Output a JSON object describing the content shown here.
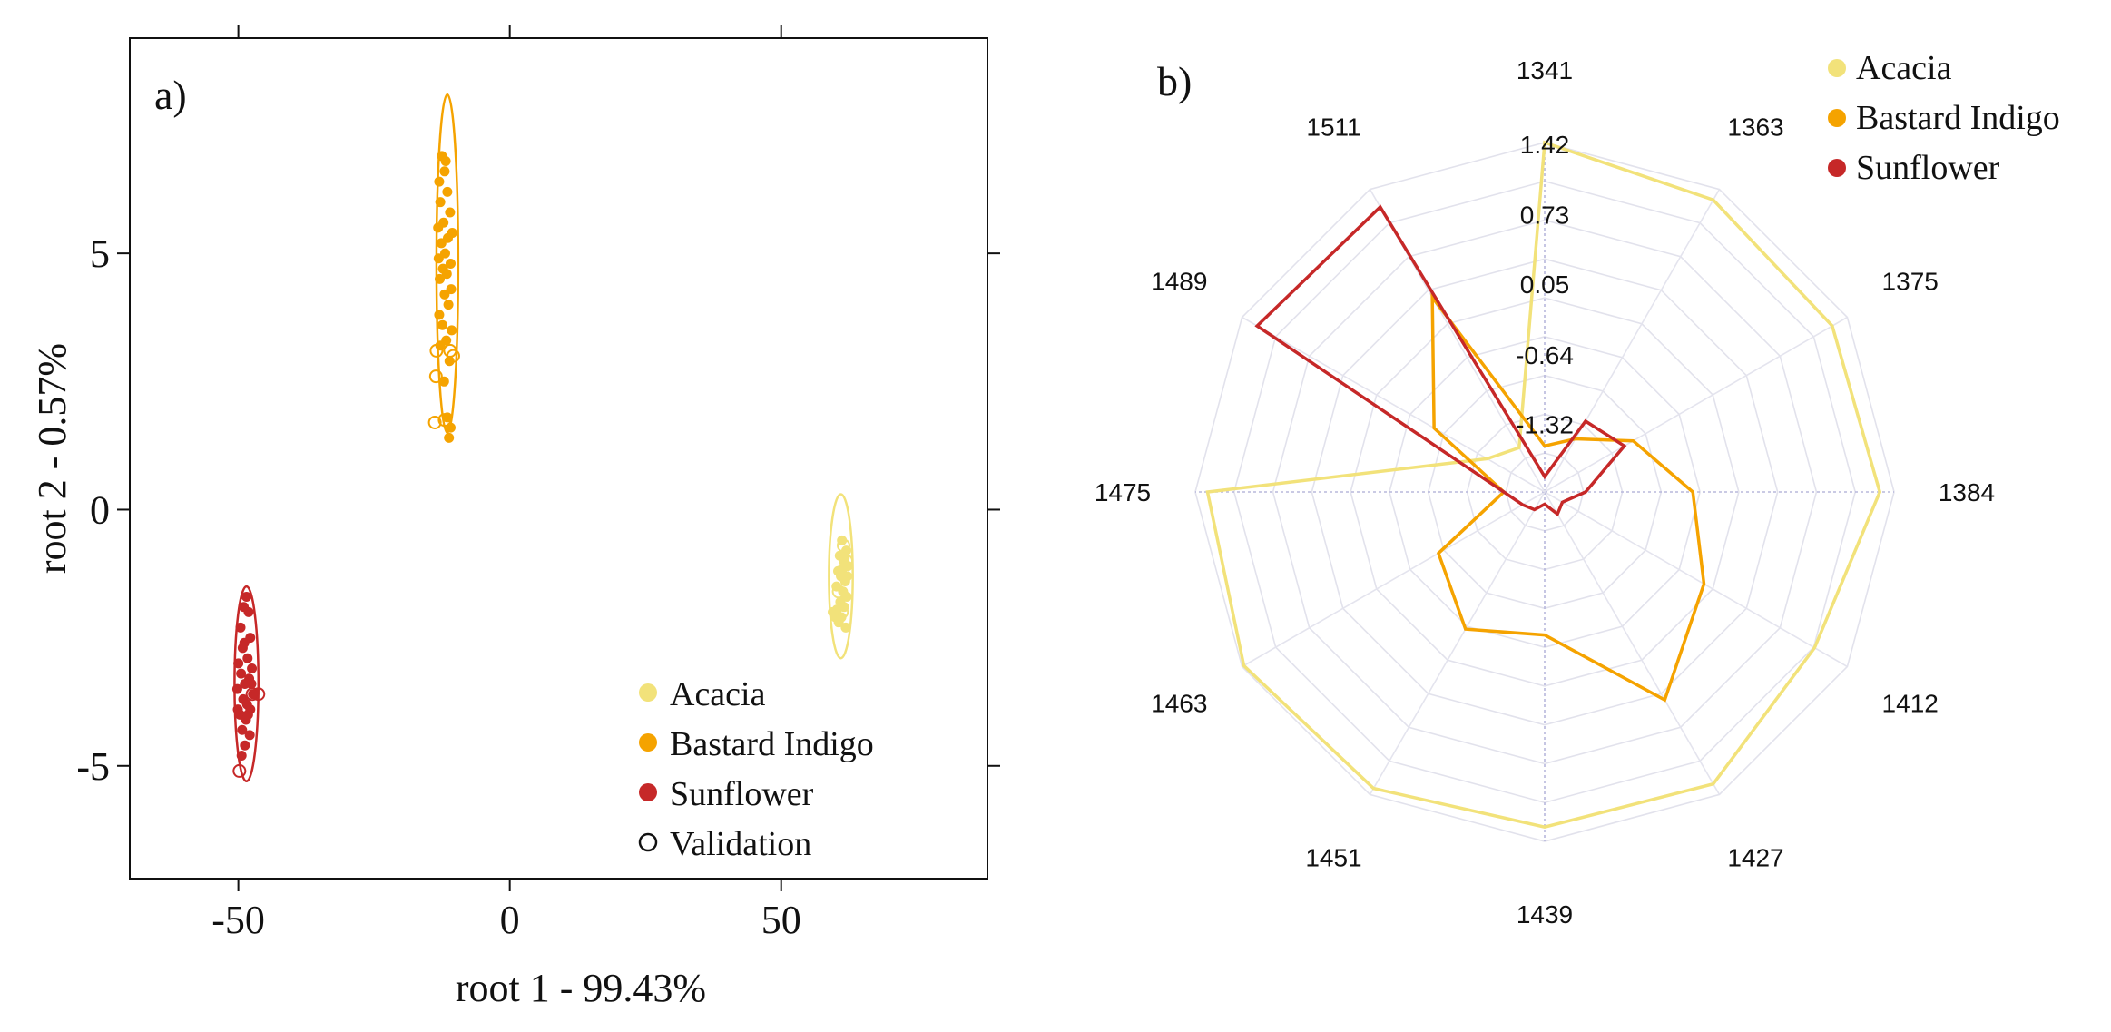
{
  "chart_data": [
    {
      "type": "scatter",
      "panel_label": "a)",
      "xlabel": "root 1 - 99.43%",
      "ylabel": "root 2 - 0.57%",
      "xlim": [
        -70,
        88
      ],
      "ylim": [
        -7.2,
        9.2
      ],
      "xticks": [
        -50,
        0,
        50
      ],
      "xtick_labels": [
        "-50",
        "0",
        "50"
      ],
      "yticks": [
        -5,
        0,
        5
      ],
      "ytick_labels": [
        "-5",
        "0",
        "5"
      ],
      "grid": false,
      "legend": "bottom-right",
      "legend_entries": [
        {
          "label": "Acacia",
          "marker": "filled",
          "color": "#f2e27a"
        },
        {
          "label": "Bastard Indigo",
          "marker": "filled",
          "color": "#f5a300"
        },
        {
          "label": "Sunflower",
          "marker": "filled",
          "color": "#c62828"
        },
        {
          "label": "Validation",
          "marker": "open",
          "color": "#111111"
        }
      ],
      "series": [
        {
          "name": "Acacia",
          "color": "#f2e27a",
          "ellipse": {
            "cx": 61,
            "cy": -1.3,
            "rx": 2.2,
            "ry": 1.6
          },
          "points": [
            [
              61.2,
              -0.6
            ],
            [
              62.0,
              -0.8
            ],
            [
              60.8,
              -0.9
            ],
            [
              61.5,
              -1.0
            ],
            [
              62.3,
              -1.1
            ],
            [
              60.5,
              -1.2
            ],
            [
              61.0,
              -1.3
            ],
            [
              61.8,
              -1.4
            ],
            [
              60.2,
              -1.5
            ],
            [
              61.4,
              -1.6
            ],
            [
              62.1,
              -1.7
            ],
            [
              60.9,
              -1.8
            ],
            [
              61.6,
              -1.9
            ],
            [
              59.5,
              -2.0
            ],
            [
              60.0,
              -2.1
            ],
            [
              61.1,
              -2.1
            ],
            [
              60.6,
              -2.2
            ],
            [
              61.9,
              -2.3
            ],
            [
              60.3,
              -1.95
            ],
            [
              61.3,
              -1.15
            ],
            [
              59.8,
              -2.0
            ],
            [
              62.2,
              -1.3
            ],
            [
              61.7,
              -0.95
            ]
          ],
          "validation": [
            [
              61.5,
              -0.7
            ],
            [
              62.0,
              -1.0
            ],
            [
              60.6,
              -1.6
            ],
            [
              61.2,
              -2.0
            ]
          ]
        },
        {
          "name": "Bastard Indigo",
          "color": "#f5a300",
          "ellipse": {
            "cx": -11.5,
            "cy": 4.8,
            "rx": 2.0,
            "ry": 3.3
          },
          "points": [
            [
              -12.5,
              6.9
            ],
            [
              -11.8,
              6.8
            ],
            [
              -12.0,
              6.6
            ],
            [
              -13.0,
              6.4
            ],
            [
              -11.5,
              6.2
            ],
            [
              -12.8,
              6.0
            ],
            [
              -11.0,
              5.8
            ],
            [
              -12.2,
              5.6
            ],
            [
              -13.2,
              5.5
            ],
            [
              -10.6,
              5.4
            ],
            [
              -11.4,
              5.3
            ],
            [
              -12.6,
              5.2
            ],
            [
              -11.9,
              5.0
            ],
            [
              -13.1,
              4.9
            ],
            [
              -10.9,
              4.8
            ],
            [
              -12.3,
              4.7
            ],
            [
              -11.6,
              4.6
            ],
            [
              -12.9,
              4.5
            ],
            [
              -10.8,
              4.3
            ],
            [
              -12.0,
              4.2
            ],
            [
              -11.3,
              4.0
            ],
            [
              -13.0,
              3.8
            ],
            [
              -12.4,
              3.6
            ],
            [
              -10.7,
              3.5
            ],
            [
              -11.7,
              3.3
            ],
            [
              -12.8,
              3.2
            ],
            [
              -11.1,
              2.9
            ],
            [
              -12.1,
              2.5
            ],
            [
              -11.5,
              1.8
            ],
            [
              -10.9,
              1.6
            ],
            [
              -11.2,
              1.4
            ]
          ],
          "validation": [
            [
              -13.5,
              3.1
            ],
            [
              -11.0,
              3.1
            ],
            [
              -10.4,
              3.0
            ],
            [
              -13.6,
              2.6
            ],
            [
              -13.8,
              1.7
            ],
            [
              -12.0,
              1.75
            ]
          ]
        },
        {
          "name": "Sunflower",
          "color": "#c62828",
          "ellipse": {
            "cx": -48.5,
            "cy": -3.4,
            "rx": 2.2,
            "ry": 1.9
          },
          "points": [
            [
              -48.5,
              -1.7
            ],
            [
              -49.0,
              -1.9
            ],
            [
              -48.1,
              -2.0
            ],
            [
              -49.6,
              -2.3
            ],
            [
              -47.8,
              -2.5
            ],
            [
              -49.2,
              -2.7
            ],
            [
              -48.3,
              -2.9
            ],
            [
              -50.0,
              -3.0
            ],
            [
              -47.5,
              -3.1
            ],
            [
              -49.5,
              -3.2
            ],
            [
              -48.0,
              -3.3
            ],
            [
              -48.8,
              -3.4
            ],
            [
              -50.2,
              -3.5
            ],
            [
              -47.3,
              -3.6
            ],
            [
              -49.1,
              -3.7
            ],
            [
              -48.4,
              -3.8
            ],
            [
              -47.8,
              -3.9
            ],
            [
              -49.7,
              -4.0
            ],
            [
              -48.6,
              -4.1
            ],
            [
              -49.3,
              -4.3
            ],
            [
              -47.9,
              -4.4
            ],
            [
              -48.8,
              -4.6
            ],
            [
              -49.4,
              -4.8
            ],
            [
              -48.2,
              -4.0
            ],
            [
              -47.6,
              -3.4
            ],
            [
              -50.1,
              -3.9
            ],
            [
              -48.9,
              -2.6
            ]
          ],
          "validation": [
            [
              -47.4,
              -3.6
            ],
            [
              -46.3,
              -3.6
            ],
            [
              -49.8,
              -5.1
            ]
          ]
        }
      ]
    },
    {
      "type": "radar",
      "panel_label": "b)",
      "categories": [
        "1341",
        "1363",
        "1375",
        "1384",
        "1412",
        "1427",
        "1439",
        "1451",
        "1463",
        "1475",
        "1489",
        "1511"
      ],
      "radial_ticks": [
        -1.32,
        -0.64,
        0.05,
        0.73,
        1.42
      ],
      "radial_tick_labels": [
        "-1.32",
        "-0.64",
        "0.05",
        "0.73",
        "1.42"
      ],
      "rlim": [
        -2.0,
        1.42
      ],
      "grid": true,
      "legend": "top-right",
      "series": [
        {
          "name": "Acacia",
          "color": "#f2e27a",
          "values": [
            1.42,
            1.3,
            1.25,
            1.28,
            1.05,
            1.3,
            1.28,
            1.35,
            1.4,
            1.3,
            -1.35,
            -1.5
          ]
        },
        {
          "name": "Bastard Indigo",
          "color": "#f5a300",
          "values": [
            -1.55,
            -1.4,
            -1.0,
            -0.55,
            -0.2,
            0.35,
            -0.6,
            -0.45,
            -0.8,
            -1.6,
            -0.75,
            0.2
          ]
        },
        {
          "name": "Sunflower",
          "color": "#c62828",
          "values": [
            -1.85,
            -1.2,
            -1.1,
            -1.6,
            -1.8,
            -1.75,
            -1.88,
            -1.8,
            -1.75,
            -1.6,
            1.25,
            1.22
          ]
        }
      ]
    }
  ]
}
